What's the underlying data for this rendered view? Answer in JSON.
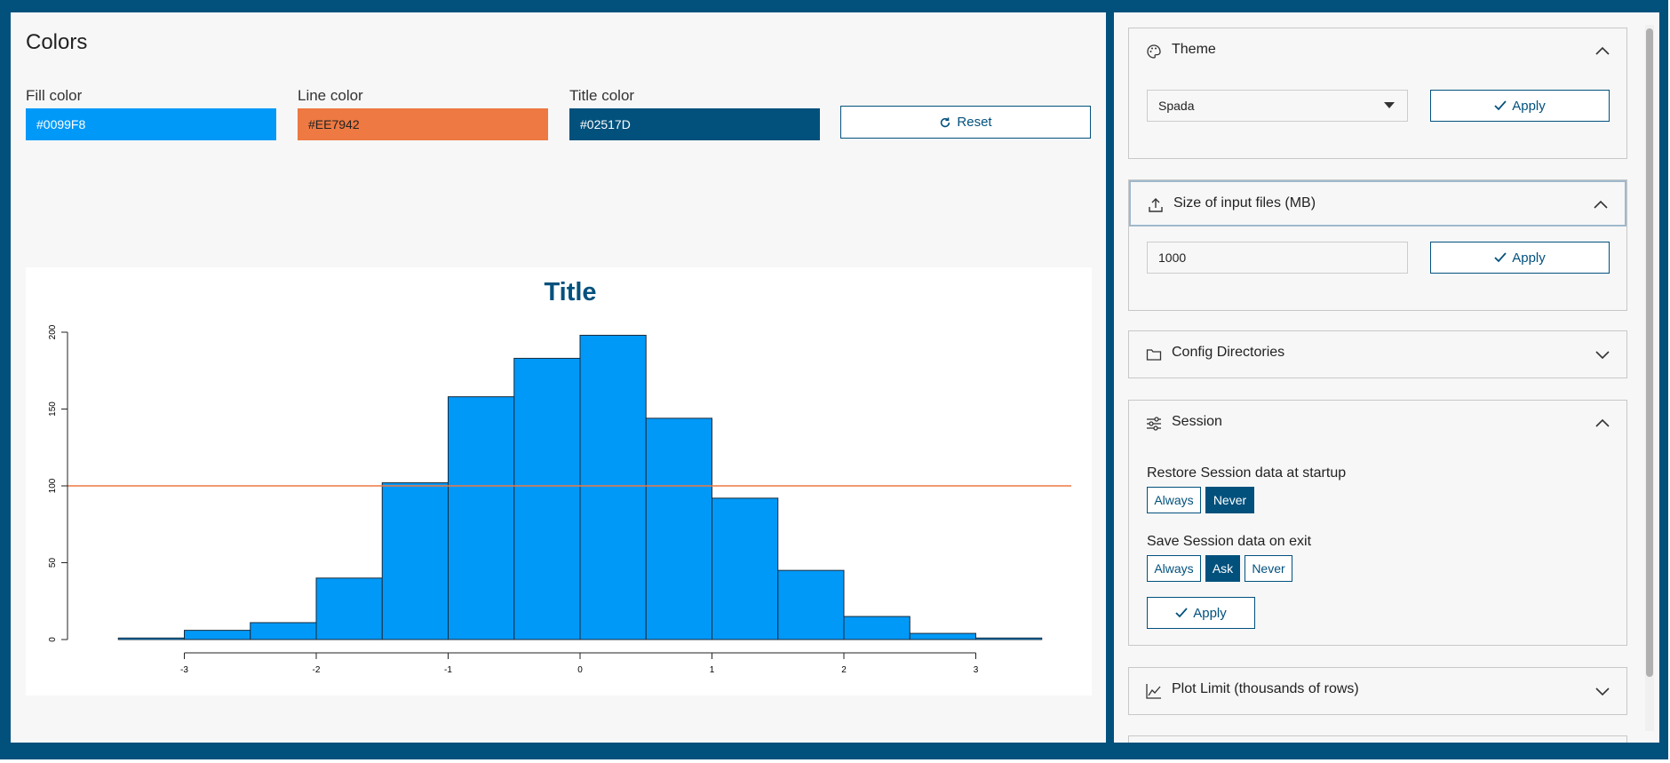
{
  "colors_section": {
    "title": "Colors",
    "fill": {
      "label": "Fill color",
      "value": "#0099F8"
    },
    "line": {
      "label": "Line color",
      "value": "#EE7942"
    },
    "title_color": {
      "label": "Title color",
      "value": "#02517D"
    },
    "reset_label": "Reset",
    "reset_icon": "refresh-icon"
  },
  "chart_data": {
    "type": "bar",
    "title": "Title",
    "xlabel": "",
    "ylabel": "",
    "bins": [
      {
        "from": -3.5,
        "to": -3.0,
        "count": 1
      },
      {
        "from": -3.0,
        "to": -2.5,
        "count": 6
      },
      {
        "from": -2.5,
        "to": -2.0,
        "count": 11
      },
      {
        "from": -2.0,
        "to": -1.5,
        "count": 40
      },
      {
        "from": -1.5,
        "to": -1.0,
        "count": 102
      },
      {
        "from": -1.0,
        "to": -0.5,
        "count": 158
      },
      {
        "from": -0.5,
        "to": 0.0,
        "count": 183
      },
      {
        "from": 0.0,
        "to": 0.5,
        "count": 198
      },
      {
        "from": 0.5,
        "to": 1.0,
        "count": 144
      },
      {
        "from": 1.0,
        "to": 1.5,
        "count": 92
      },
      {
        "from": 1.5,
        "to": 2.0,
        "count": 45
      },
      {
        "from": 2.0,
        "to": 2.5,
        "count": 15
      },
      {
        "from": 2.5,
        "to": 3.0,
        "count": 4
      },
      {
        "from": 3.0,
        "to": 3.5,
        "count": 1
      }
    ],
    "hline": 100,
    "xlim": [
      -3.5,
      3.5
    ],
    "ylim": [
      0,
      200
    ],
    "xticks": [
      "-3",
      "-2",
      "-1",
      "0",
      "1",
      "2",
      "3"
    ],
    "yticks": [
      "0",
      "50",
      "100",
      "150",
      "200"
    ],
    "fill_color": "#0099F8",
    "line_color": "#EE7942",
    "title_color": "#02517D",
    "grid": false
  },
  "settings": {
    "theme": {
      "title": "Theme",
      "icon": "palette-icon",
      "selected": "Spada",
      "apply_label": "Apply"
    },
    "upload": {
      "title": "Size of input files (MB)",
      "icon": "upload-icon",
      "value": "1000",
      "apply_label": "Apply"
    },
    "config": {
      "title": "Config Directories",
      "icon": "folder-icon"
    },
    "session": {
      "title": "Session",
      "icon": "sliders-icon",
      "restore_label": "Restore Session data at startup",
      "restore_options": [
        "Always",
        "Never"
      ],
      "restore_selected": "Never",
      "save_label": "Save Session data on exit",
      "save_options": [
        "Always",
        "Ask",
        "Never"
      ],
      "save_selected": "Ask",
      "apply_label": "Apply"
    },
    "plot_limit": {
      "title": "Plot Limit (thousands of rows)",
      "icon": "chart-line-icon"
    }
  }
}
